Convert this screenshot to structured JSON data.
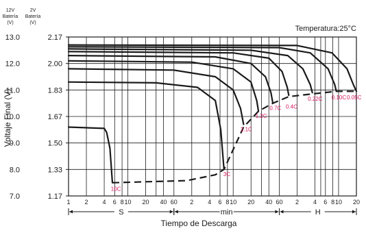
{
  "chart_data": {
    "type": "line",
    "title": "",
    "temperature_note": "Temperatura:25°C",
    "y_axis": {
      "label": "Voltaje Final (V)",
      "header_12v": [
        "12V",
        "Batería",
        "(V)"
      ],
      "header_2v": [
        "2V",
        "Batería",
        "(V)"
      ],
      "ticks_12v": [
        "13.0",
        "12.0",
        "11.0",
        "10.0",
        "9.0",
        "8.0",
        "7.0"
      ],
      "ticks_2v": [
        "2.17",
        "2.00",
        "1.83",
        "1.67",
        "1.50",
        "1.33",
        "1.17"
      ],
      "ylim_12v": [
        7.0,
        13.0
      ]
    },
    "x_axis": {
      "label": "Tiempo de Descarga",
      "scale": "log",
      "xlim_seconds": [
        1,
        72000
      ],
      "ticks": [
        {
          "label": "1",
          "seconds": 1
        },
        {
          "label": "2",
          "seconds": 2
        },
        {
          "label": "4",
          "seconds": 4
        },
        {
          "label": "6",
          "seconds": 6
        },
        {
          "label": "8",
          "seconds": 8
        },
        {
          "label": "10",
          "seconds": 10
        },
        {
          "label": "20",
          "seconds": 20
        },
        {
          "label": "40",
          "seconds": 40
        },
        {
          "label": "60",
          "seconds": 60
        },
        {
          "label": "2",
          "seconds": 120
        },
        {
          "label": "4",
          "seconds": 240
        },
        {
          "label": "6",
          "seconds": 360
        },
        {
          "label": "8",
          "seconds": 480
        },
        {
          "label": "10",
          "seconds": 600
        },
        {
          "label": "20",
          "seconds": 1200
        },
        {
          "label": "40",
          "seconds": 2400
        },
        {
          "label": "60",
          "seconds": 3600
        },
        {
          "label": "2",
          "seconds": 7200
        },
        {
          "label": "4",
          "seconds": 14400
        },
        {
          "label": "6",
          "seconds": 21600
        },
        {
          "label": "8",
          "seconds": 28800
        },
        {
          "label": "10",
          "seconds": 36000
        },
        {
          "label": "20",
          "seconds": 72000
        }
      ],
      "extra_grid_seconds": [
        30,
        1800,
        18000
      ],
      "units": [
        {
          "label": "S",
          "from": 1,
          "to": 60
        },
        {
          "label": "min",
          "from": 60,
          "to": 3600
        },
        {
          "label": "H",
          "from": 3600,
          "to": 72000
        }
      ]
    },
    "grid": true,
    "series": [
      {
        "name": "10C",
        "points": [
          [
            1,
            9.6
          ],
          [
            4,
            9.55
          ],
          [
            4.4,
            9.4
          ],
          [
            5,
            8.8
          ],
          [
            5.5,
            7.5
          ]
        ]
      },
      {
        "name": "3C",
        "points": [
          [
            1,
            11.3
          ],
          [
            30,
            11.27
          ],
          [
            150,
            11.1
          ],
          [
            300,
            10.6
          ],
          [
            370,
            9.5
          ],
          [
            420,
            8.0
          ]
        ]
      },
      {
        "name": "2.1C",
        "points": [
          [
            1,
            11.8
          ],
          [
            60,
            11.75
          ],
          [
            300,
            11.5
          ],
          [
            600,
            11.0
          ],
          [
            800,
            10.3
          ],
          [
            900,
            9.7
          ]
        ]
      },
      {
        "name": "1.2C",
        "points": [
          [
            1,
            12.1
          ],
          [
            120,
            12.05
          ],
          [
            600,
            11.8
          ],
          [
            1200,
            11.3
          ],
          [
            1500,
            10.6
          ],
          [
            1600,
            10.2
          ]
        ]
      },
      {
        "name": "0.7C",
        "points": [
          [
            1,
            12.3
          ],
          [
            300,
            12.25
          ],
          [
            1200,
            12.0
          ],
          [
            2100,
            11.5
          ],
          [
            2600,
            10.9
          ],
          [
            2800,
            10.5
          ]
        ]
      },
      {
        "name": "0.4C",
        "points": [
          [
            1,
            12.45
          ],
          [
            600,
            12.4
          ],
          [
            2400,
            12.2
          ],
          [
            4000,
            11.7
          ],
          [
            4900,
            11.1
          ],
          [
            5200,
            10.8
          ]
        ]
      },
      {
        "name": "0.22C",
        "points": [
          [
            1,
            12.55
          ],
          [
            1200,
            12.5
          ],
          [
            5000,
            12.3
          ],
          [
            9000,
            11.8
          ],
          [
            12000,
            11.2
          ],
          [
            13000,
            10.9
          ]
        ]
      },
      {
        "name": "0.10C",
        "points": [
          [
            1,
            12.63
          ],
          [
            3600,
            12.6
          ],
          [
            12000,
            12.4
          ],
          [
            24000,
            11.8
          ],
          [
            31000,
            11.2
          ],
          [
            33000,
            10.95
          ]
        ]
      },
      {
        "name": "0.05C",
        "points": [
          [
            1,
            12.7
          ],
          [
            7200,
            12.68
          ],
          [
            28000,
            12.4
          ],
          [
            50000,
            11.8
          ],
          [
            64000,
            11.2
          ],
          [
            72000,
            10.95
          ]
        ]
      }
    ],
    "cutoff_curve": {
      "style": "dashed",
      "points": [
        [
          5.5,
          7.5
        ],
        [
          100,
          7.58
        ],
        [
          300,
          7.8
        ],
        [
          420,
          8.0
        ],
        [
          900,
          9.6
        ],
        [
          1600,
          10.2
        ],
        [
          2800,
          10.5
        ],
        [
          5200,
          10.75
        ],
        [
          13000,
          10.85
        ],
        [
          33000,
          10.95
        ],
        [
          72000,
          10.95
        ]
      ]
    },
    "rate_labels": [
      {
        "text": "10C",
        "x": 6.3,
        "y": 7.2
      },
      {
        "text": "3C",
        "x": 470,
        "y": 7.75
      },
      {
        "text": "2.1C",
        "x": 1000,
        "y": 9.45
      },
      {
        "text": "1.2C",
        "x": 1780,
        "y": 9.95
      },
      {
        "text": "0.7C",
        "x": 3100,
        "y": 10.25
      },
      {
        "text": "0.4C",
        "x": 5800,
        "y": 10.3
      },
      {
        "text": "0.22C",
        "x": 14500,
        "y": 10.6
      },
      {
        "text": "0.10C",
        "x": 36500,
        "y": 10.65
      },
      {
        "text": "0.05C",
        "x": 66000,
        "y": 10.65
      }
    ],
    "colors": {
      "series": "#1a1a1a",
      "grid": "#1a1a1a",
      "rate_label": "#d8175e"
    }
  }
}
